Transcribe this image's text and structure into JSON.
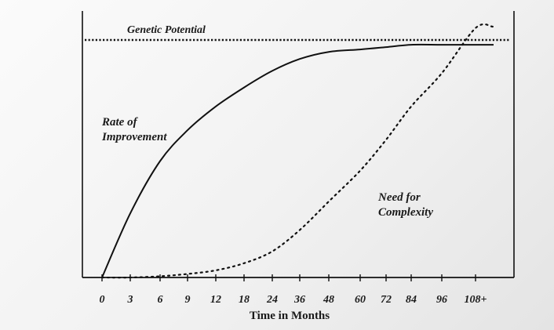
{
  "chart_data": {
    "type": "line",
    "title": "",
    "xlabel": "Time in Months",
    "ylabel": "",
    "x_tick_labels": [
      "0",
      "3",
      "6",
      "9",
      "12",
      "18",
      "24",
      "36",
      "48",
      "60",
      "72",
      "84",
      "96",
      "108+"
    ],
    "reference_line": {
      "name": "Genetic Potential",
      "style": "dotted",
      "y": 1.0
    },
    "series": [
      {
        "name": "Rate of Improvement",
        "style": "solid",
        "points": [
          {
            "x": "0",
            "y": 0.0
          },
          {
            "x": "3",
            "y": 0.27
          },
          {
            "x": "6",
            "y": 0.49
          },
          {
            "x": "9",
            "y": 0.62
          },
          {
            "x": "12",
            "y": 0.72
          },
          {
            "x": "18",
            "y": 0.8
          },
          {
            "x": "24",
            "y": 0.87
          },
          {
            "x": "36",
            "y": 0.92
          },
          {
            "x": "48",
            "y": 0.95
          },
          {
            "x": "60",
            "y": 0.96
          },
          {
            "x": "72",
            "y": 0.97
          },
          {
            "x": "84",
            "y": 0.98
          },
          {
            "x": "96",
            "y": 0.98
          },
          {
            "x": "108+",
            "y": 0.98
          }
        ],
        "label_lines": [
          "Rate of",
          "Improvement"
        ]
      },
      {
        "name": "Need for Complexity",
        "style": "dotted",
        "points": [
          {
            "x": "0",
            "y": 0.0
          },
          {
            "x": "3",
            "y": 0.0
          },
          {
            "x": "6",
            "y": 0.005
          },
          {
            "x": "9",
            "y": 0.015
          },
          {
            "x": "12",
            "y": 0.03
          },
          {
            "x": "18",
            "y": 0.06
          },
          {
            "x": "24",
            "y": 0.11
          },
          {
            "x": "36",
            "y": 0.2
          },
          {
            "x": "48",
            "y": 0.32
          },
          {
            "x": "60",
            "y": 0.45
          },
          {
            "x": "72",
            "y": 0.58
          },
          {
            "x": "84",
            "y": 0.72
          },
          {
            "x": "96",
            "y": 0.86
          },
          {
            "x": "108+",
            "y": 1.05
          }
        ],
        "label_lines": [
          "Need for",
          "Complexity"
        ]
      }
    ]
  }
}
